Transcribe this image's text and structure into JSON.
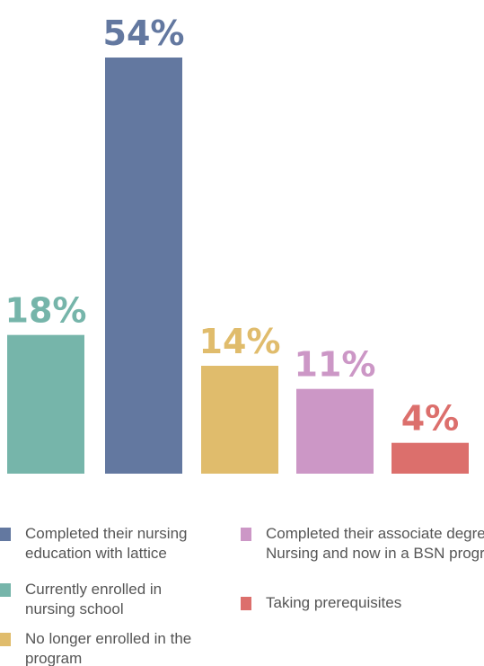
{
  "chart_data": {
    "type": "bar",
    "categories": [
      "Currently enrolled in nursing school",
      "Completed their nursing education with lattice",
      "No longer enrolled in the program",
      "Completed their associate degree in Nursing and now in a BSN program",
      "Taking prerequisites"
    ],
    "values": [
      18,
      54,
      14,
      11,
      4
    ],
    "value_labels": [
      "18%",
      "54%",
      "14%",
      "11%",
      "4%"
    ],
    "colors": [
      "#76b5aa",
      "#6378a0",
      "#e0bc6c",
      "#cc97c6",
      "#dc6f6c"
    ],
    "ylim": [
      0,
      54
    ]
  }
}
